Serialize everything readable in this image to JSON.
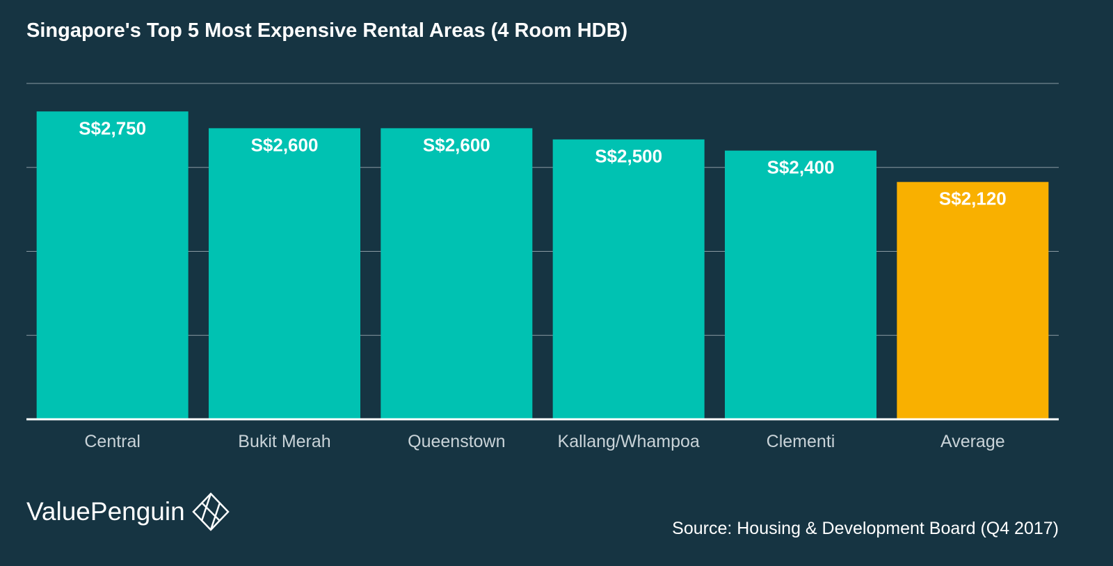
{
  "brand": {
    "name": "ValuePenguin",
    "logo_icon": "valuepenguin-diamond-icon"
  },
  "source_text": "Source: Housing & Development Board (Q4 2017)",
  "colors": {
    "background": "#163442",
    "bar": "#00c2b2",
    "highlight_bar": "#f9b000",
    "gridline": "#8a9aa2",
    "axis_line": "#ffffff",
    "tick_label": "#c9d3d8",
    "data_label": "#ffffff"
  },
  "chart_data": {
    "type": "bar",
    "title": "Singapore's Top 5 Most Expensive Rental Areas (4 Room HDB)",
    "categories": [
      "Central",
      "Bukit Merah",
      "Queenstown",
      "Kallang/Whampoa",
      "Clementi",
      "Average"
    ],
    "values": [
      2750,
      2600,
      2600,
      2500,
      2400,
      2120
    ],
    "data_labels": [
      "S$2,750",
      "S$2,600",
      "S$2,600",
      "S$2,500",
      "S$2,400",
      "S$2,120"
    ],
    "highlight_category": "Average",
    "xlabel": "",
    "ylabel": "",
    "ylim": [
      0,
      3000
    ],
    "gridlines": [
      750,
      1500,
      2250,
      3000
    ],
    "grid": true,
    "y_tick_labels_shown": false
  }
}
